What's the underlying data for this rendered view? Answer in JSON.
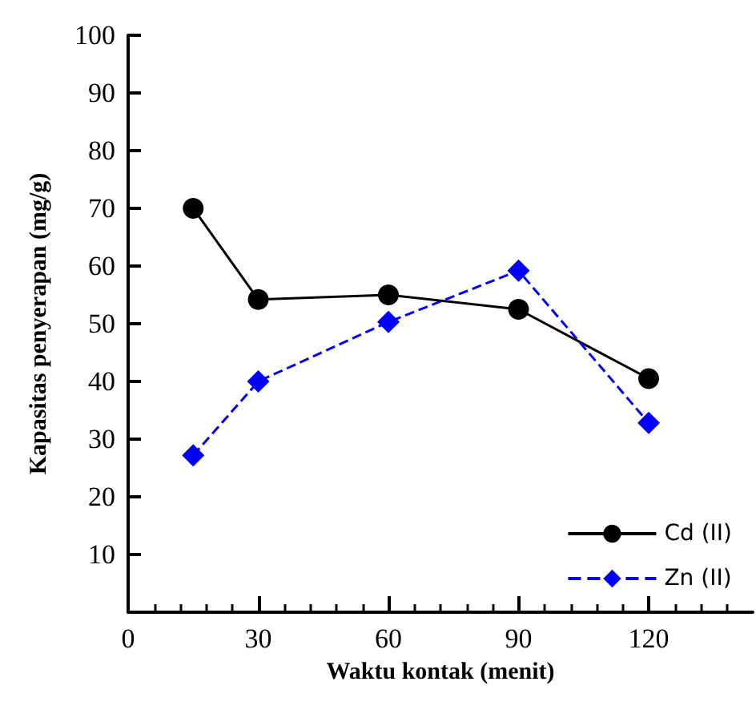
{
  "chart_data": {
    "type": "line",
    "xlabel": "Waktu kontak (menit)",
    "ylabel": "Kapasitas penyerapan (mg/g)",
    "xlim": [
      0,
      144
    ],
    "xticks": [
      0,
      30,
      60,
      90,
      120
    ],
    "ylim": [
      0,
      100
    ],
    "yticks": [
      {
        "value": 0,
        "label": null
      },
      10,
      20,
      30,
      40,
      50,
      60,
      70,
      80,
      90,
      100
    ],
    "x": [
      15,
      30,
      60,
      90,
      120
    ],
    "series": [
      {
        "name": "Cd (II)",
        "color": "#000000",
        "values": [
          70,
          54.2,
          55,
          52.5,
          40.5
        ],
        "marker": "circle",
        "line_style": "solid"
      },
      {
        "name": "Zn (II)",
        "color": "#0000ff",
        "values": [
          27.2,
          40,
          50.3,
          59.2,
          32.8
        ],
        "marker": "diamond",
        "line_style": "dashed"
      }
    ],
    "legend": "bottom right",
    "grid": false
  }
}
